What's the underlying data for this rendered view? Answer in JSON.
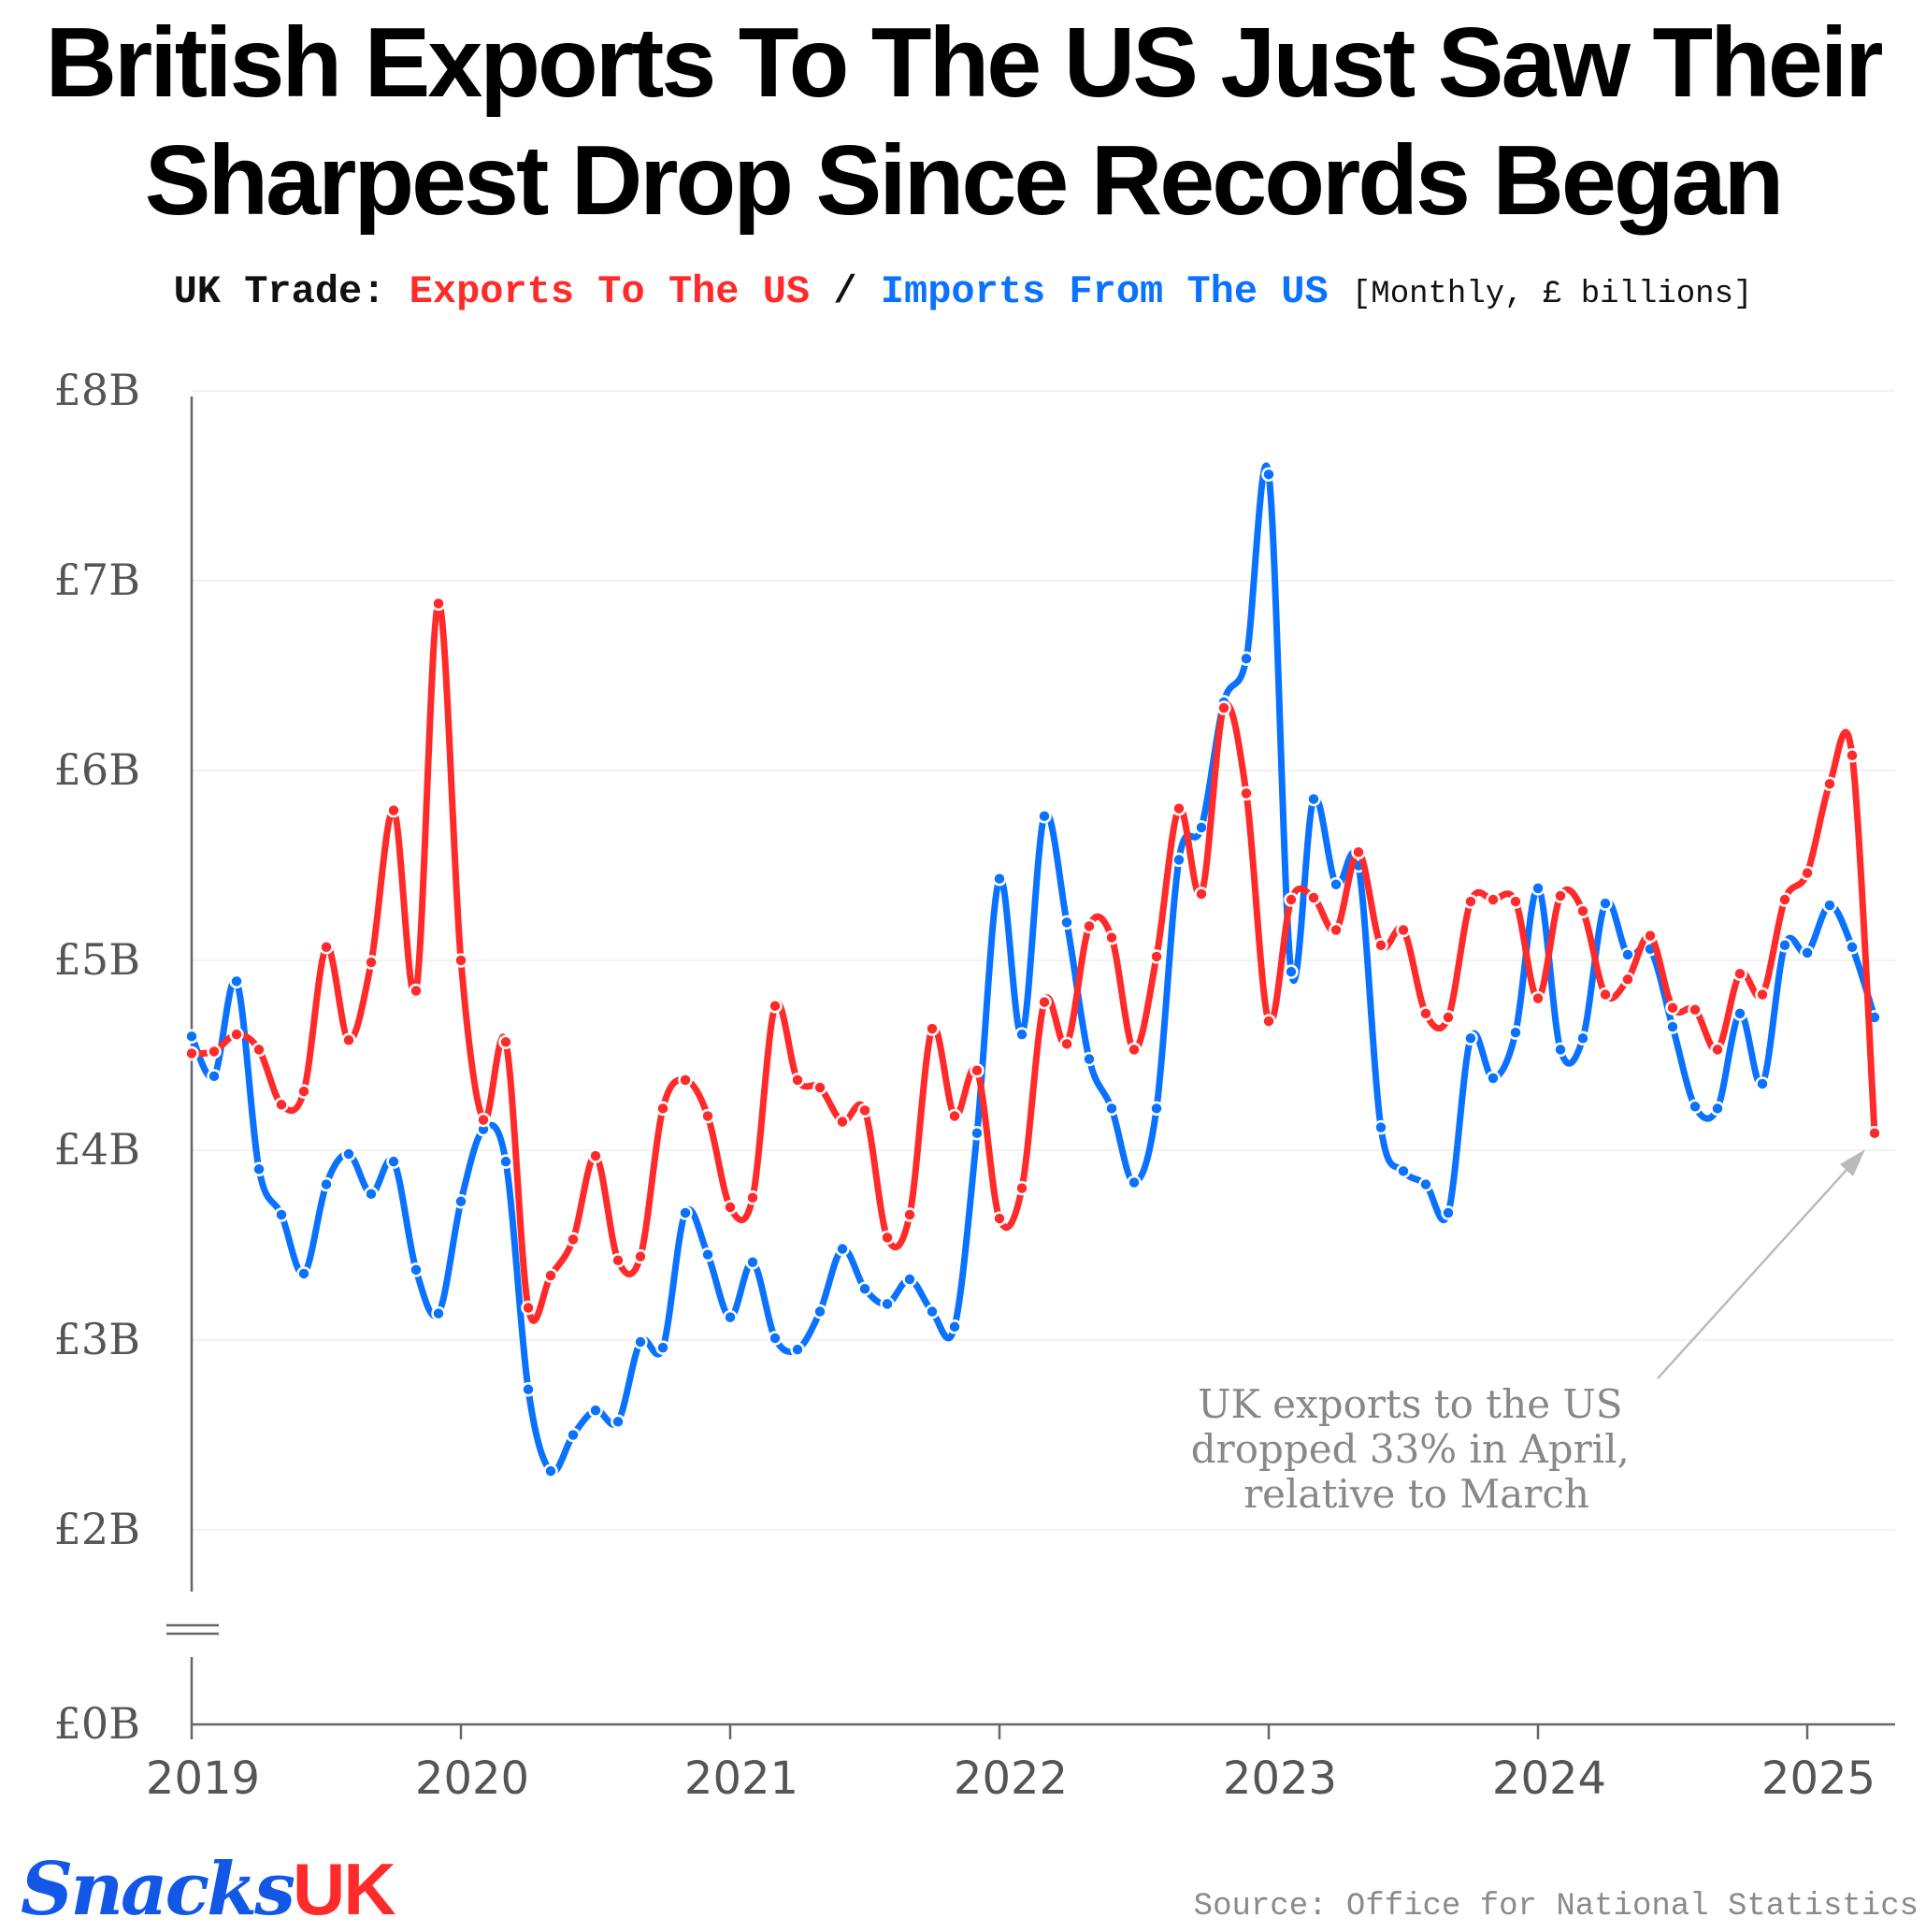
{
  "header": {
    "title_line1": "British Exports To The US Just Saw Their",
    "title_line2": "Sharpest Drop Since Records Began",
    "subtitle_prefix": "UK Trade:",
    "subtitle_exports": "Exports To The US",
    "subtitle_separator": "/",
    "subtitle_imports": "Imports From The US",
    "subtitle_units": "[Monthly, £ billions]"
  },
  "footer": {
    "brand_name": "Snacks",
    "brand_suffix": "UK",
    "source": "Source: Office for National Statistics"
  },
  "annotation": {
    "lines": [
      "UK exports to the US",
      "dropped 33% in April,",
      "relative to March"
    ]
  },
  "colors": {
    "exports": "#ff2a2a",
    "imports": "#0a72ff",
    "axis": "#666666",
    "grid": "#eeeeee",
    "annotation": "#888888"
  },
  "chart_data": {
    "type": "line",
    "title": "British Exports To The US Just Saw Their Sharpest Drop Since Records Began",
    "xlabel": "",
    "ylabel": "",
    "x_start": "2019-01",
    "x_frequency": "monthly",
    "x_tick_labels": [
      "2019",
      "2020",
      "2021",
      "2022",
      "2023",
      "2024",
      "2025"
    ],
    "y_tick_labels": [
      "£0B",
      "£2B",
      "£3B",
      "£4B",
      "£5B",
      "£6B",
      "£7B",
      "£8B"
    ],
    "y_tick_values": [
      0,
      2,
      3,
      4,
      5,
      6,
      7,
      8
    ],
    "ylim": [
      0,
      8
    ],
    "y_axis_break": true,
    "grid": true,
    "series": [
      {
        "name": "Exports To The US",
        "color": "#ff2a2a",
        "values": [
          4.51,
          4.52,
          4.61,
          4.53,
          4.24,
          4.31,
          5.07,
          4.58,
          4.99,
          5.79,
          4.84,
          6.88,
          5.0,
          4.16,
          4.57,
          3.17,
          3.34,
          3.53,
          3.97,
          3.42,
          3.44,
          4.22,
          4.37,
          4.18,
          3.7,
          3.75,
          4.76,
          4.37,
          4.33,
          4.15,
          4.21,
          3.54,
          3.66,
          4.64,
          4.18,
          4.42,
          3.64,
          3.8,
          4.78,
          4.56,
          5.18,
          5.12,
          4.53,
          5.02,
          5.8,
          5.35,
          6.33,
          5.88,
          4.68,
          5.32,
          5.33,
          5.16,
          5.57,
          5.08,
          5.16,
          4.72,
          4.7,
          5.31,
          5.32,
          5.31,
          4.8,
          5.34,
          5.26,
          4.82,
          4.9,
          5.13,
          4.75,
          4.74,
          4.53,
          4.93,
          4.82,
          5.32,
          5.46,
          5.93,
          6.08,
          4.09
        ]
      },
      {
        "name": "Imports From The US",
        "color": "#0a72ff",
        "values": [
          4.6,
          4.39,
          4.89,
          3.9,
          3.66,
          3.35,
          3.82,
          3.98,
          3.77,
          3.94,
          3.37,
          3.14,
          3.73,
          4.11,
          3.94,
          2.74,
          2.31,
          2.5,
          2.63,
          2.57,
          2.99,
          2.96,
          3.67,
          3.45,
          3.12,
          3.41,
          3.01,
          2.95,
          3.15,
          3.48,
          3.27,
          3.19,
          3.32,
          3.15,
          3.07,
          4.09,
          5.43,
          4.61,
          5.76,
          5.2,
          4.48,
          4.22,
          3.83,
          4.22,
          5.53,
          5.7,
          6.36,
          6.59,
          7.56,
          4.94,
          5.85,
          5.4,
          5.5,
          4.12,
          3.89,
          3.82,
          3.67,
          4.59,
          4.38,
          4.62,
          5.38,
          4.53,
          4.59,
          5.3,
          5.03,
          5.06,
          4.65,
          4.23,
          4.22,
          4.72,
          4.35,
          5.08,
          5.04,
          5.29,
          5.07,
          4.7
        ]
      }
    ]
  }
}
